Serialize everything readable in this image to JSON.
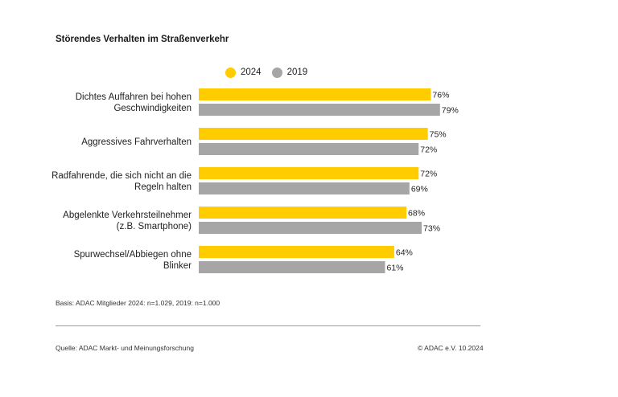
{
  "chart_data": {
    "type": "bar",
    "orientation": "horizontal",
    "title": "Störendes Verhalten im Straßenverkehr",
    "categories": [
      [
        "Dichtes Auffahren bei hohen",
        "Geschwindigkeiten"
      ],
      [
        "Aggressives Fahrverhalten"
      ],
      [
        "Radfahrende, die sich nicht an die",
        "Regeln halten"
      ],
      [
        "Abgelenkte Verkehrsteilnehmer",
        "(z.B. Smartphone)"
      ],
      [
        "Spurwechsel/Abbiegen ohne",
        "Blinker"
      ]
    ],
    "series": [
      {
        "name": "2024",
        "color": "#FFCC00",
        "values": [
          76,
          75,
          72,
          68,
          64
        ]
      },
      {
        "name": "2019",
        "color": "#A6A6A6",
        "values": [
          79,
          72,
          69,
          73,
          61
        ]
      }
    ],
    "value_suffix": "%",
    "xlim": [
      0,
      100
    ],
    "grid": false,
    "legend_position": "top"
  },
  "footer": {
    "basis": "Basis: ADAC Mitglieder 2024: n=1.029, 2019: n=1.000",
    "source": "Quelle: ADAC Markt- und Meinungsforschung",
    "copyright": "© ADAC e.V. 10.2024"
  }
}
